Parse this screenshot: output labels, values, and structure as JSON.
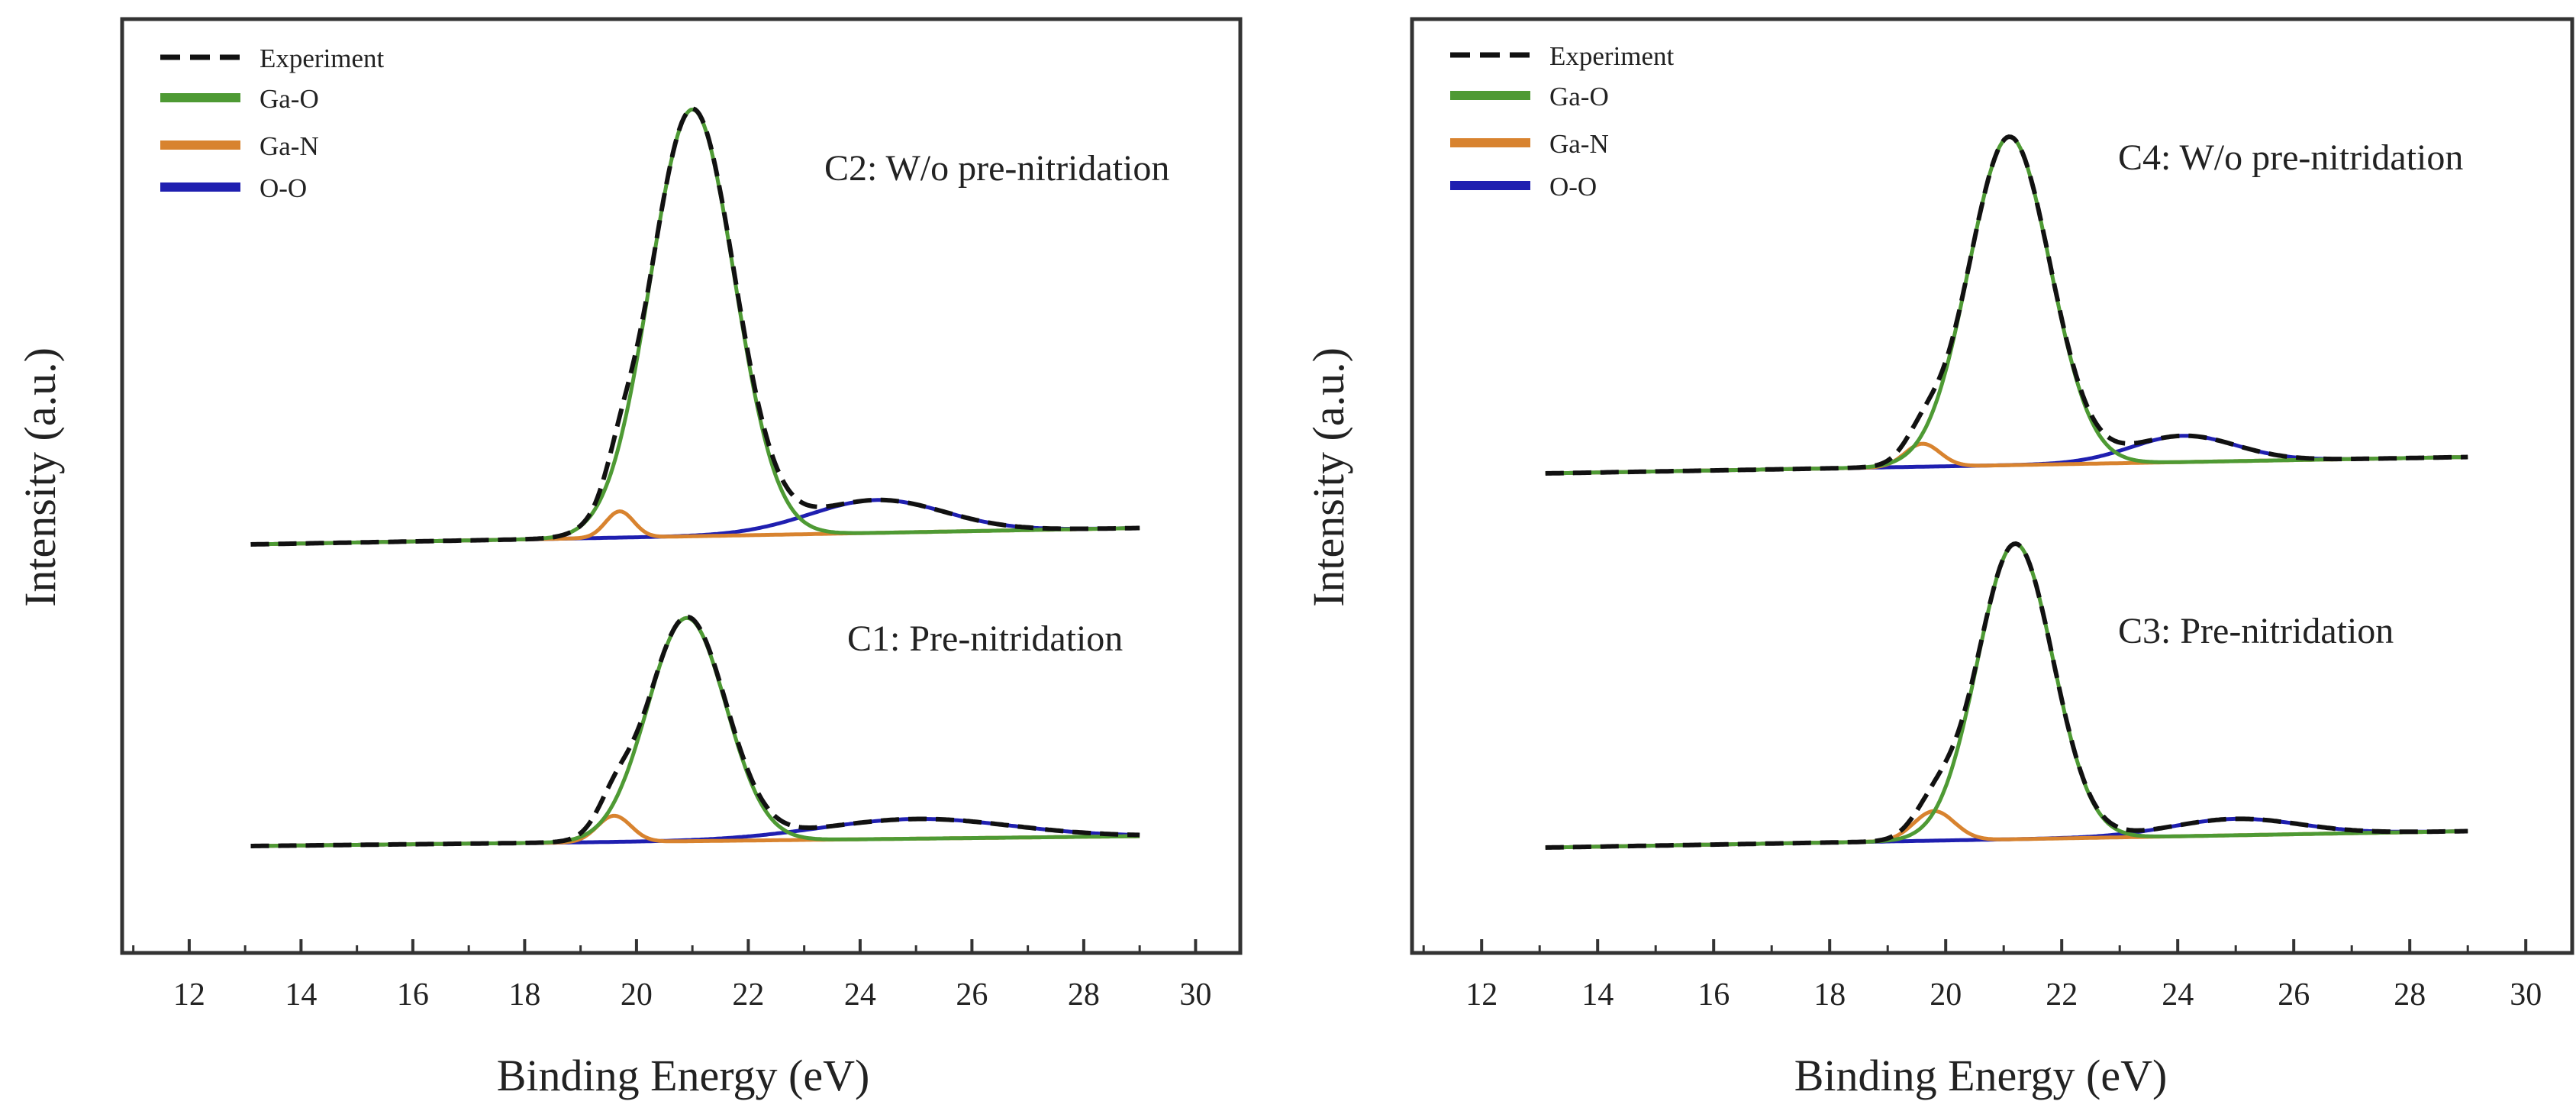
{
  "colors": {
    "experiment": "#111111",
    "ga_o": "#4e9a34",
    "ga_n": "#d8832f",
    "o_o": "#1f1fb0",
    "axis": "#333333"
  },
  "chart_data": [
    {
      "type": "line",
      "panel": "left",
      "xlabel": "Binding Energy (eV)",
      "ylabel": "Intensity (a.u.)",
      "xlim": [
        10.8,
        30.8
      ],
      "xticks": [
        12,
        14,
        16,
        18,
        20,
        22,
        24,
        26,
        28,
        30
      ],
      "legend_position": "top-left",
      "legend": [
        "Experiment",
        "Ga-O",
        "Ga-N",
        "O-O"
      ],
      "spectra": [
        {
          "annotation": "C2: W/o pre-nitridation",
          "baseline": [
            [
              13.1,
              0.0
            ],
            [
              29.0,
              0.05
            ]
          ],
          "components": {
            "Ga-O": {
              "center": 21.0,
              "height": 1.3,
              "sigma": 0.75
            },
            "Ga-N": {
              "center": 19.7,
              "height": 0.08,
              "sigma": 0.25
            },
            "O-O": {
              "center": 24.3,
              "height": 0.1,
              "sigma": 1.2
            }
          }
        },
        {
          "annotation": "C1: Pre-nitridation",
          "baseline": [
            [
              13.1,
              0.0
            ],
            [
              29.0,
              0.03
            ]
          ],
          "components": {
            "Ga-O": {
              "center": 20.9,
              "height": 0.68,
              "sigma": 0.7
            },
            "Ga-N": {
              "center": 19.6,
              "height": 0.08,
              "sigma": 0.3
            },
            "O-O": {
              "center": 25.0,
              "height": 0.06,
              "sigma": 1.7
            }
          }
        }
      ]
    },
    {
      "type": "line",
      "panel": "right",
      "xlabel": "Binding Energy (eV)",
      "ylabel": "Intensity (a.u.)",
      "xlim": [
        10.8,
        30.8
      ],
      "xticks": [
        12,
        14,
        16,
        18,
        20,
        22,
        24,
        26,
        28,
        30
      ],
      "legend_position": "top-left",
      "legend": [
        "Experiment",
        "Ga-O",
        "Ga-N",
        "O-O"
      ],
      "spectra": [
        {
          "annotation": "C4: W/o pre-nitridation",
          "baseline": [
            [
              13.1,
              0.0
            ],
            [
              29.0,
              0.05
            ]
          ],
          "components": {
            "Ga-O": {
              "center": 21.1,
              "height": 1.0,
              "sigma": 0.7
            },
            "Ga-N": {
              "center": 19.6,
              "height": 0.07,
              "sigma": 0.3
            },
            "O-O": {
              "center": 24.1,
              "height": 0.08,
              "sigma": 0.9
            }
          }
        },
        {
          "annotation": "C3: Pre-nitridation",
          "baseline": [
            [
              13.1,
              0.0
            ],
            [
              29.0,
              0.05
            ]
          ],
          "components": {
            "Ga-O": {
              "center": 21.2,
              "height": 0.9,
              "sigma": 0.65
            },
            "Ga-N": {
              "center": 19.8,
              "height": 0.09,
              "sigma": 0.35
            },
            "O-O": {
              "center": 25.0,
              "height": 0.05,
              "sigma": 1.1
            }
          }
        }
      ]
    }
  ]
}
